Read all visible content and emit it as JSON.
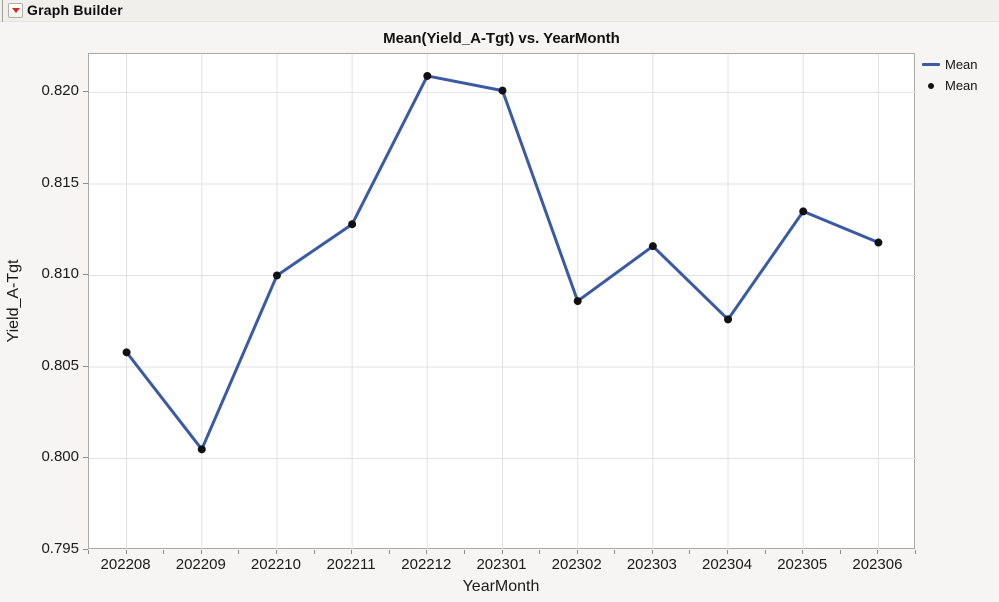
{
  "window": {
    "title": "Graph Builder"
  },
  "chart_data": {
    "type": "line",
    "title": "Mean(Yield_A-Tgt) vs. YearMonth",
    "xlabel": "YearMonth",
    "ylabel": "Yield_A-Tgt",
    "categories": [
      "202208",
      "202209",
      "202210",
      "202211",
      "202212",
      "202301",
      "202302",
      "202303",
      "202304",
      "202305",
      "202306"
    ],
    "series": [
      {
        "name": "Mean",
        "values": [
          0.8058,
          0.8005,
          0.81,
          0.8128,
          0.8209,
          0.8201,
          0.8086,
          0.8116,
          0.8076,
          0.8135,
          0.8118
        ]
      }
    ],
    "y_axis": {
      "min": 0.795,
      "max": 0.8221,
      "ticks": [
        0.795,
        0.8,
        0.805,
        0.81,
        0.815,
        0.82
      ],
      "tick_decimals": 3
    },
    "x_axis": {
      "minor_ticks_per_band": 2
    },
    "grid": true,
    "legend": {
      "position": "right",
      "entries": [
        {
          "label": "Mean",
          "marker": "line"
        },
        {
          "label": "Mean",
          "marker": "point"
        }
      ]
    },
    "colors": {
      "line": "#3a5aa6",
      "marker": "#111111"
    }
  }
}
